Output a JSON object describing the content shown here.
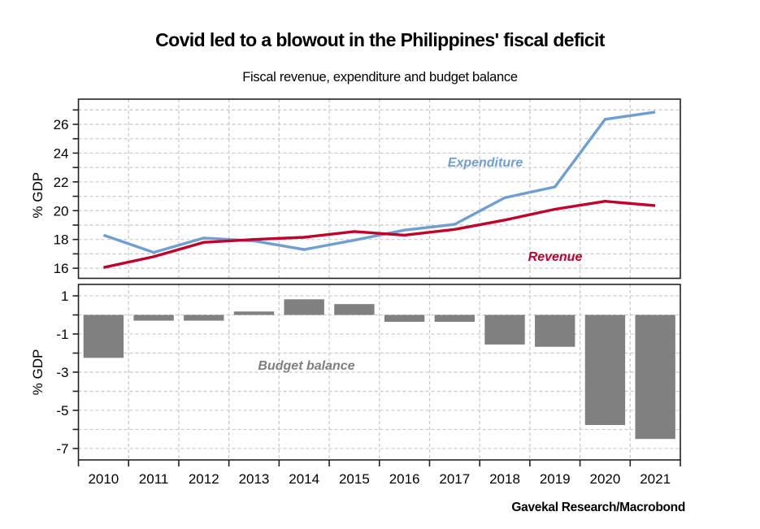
{
  "title": "Covid led to a blowout in the Philippines' fiscal deficit",
  "subtitle": "Fiscal revenue, expenditure and budget balance",
  "source": "Gavekal Research/Macrobond",
  "colors": {
    "expenditure": "#6f9fd0",
    "revenue": "#c0002a",
    "budget_balance": "#808080",
    "budget_label": "#7f7f7f",
    "grid": "#c8c8c8",
    "axis": "#222222"
  },
  "chart_data": [
    {
      "type": "line",
      "panel": "top",
      "categories": [
        "2010",
        "2011",
        "2012",
        "2013",
        "2014",
        "2015",
        "2016",
        "2017",
        "2018",
        "2019",
        "2020",
        "2021"
      ],
      "series": [
        {
          "name": "Expenditure",
          "label": "Expenditure",
          "values": [
            18.3,
            17.1,
            18.1,
            17.9,
            17.3,
            17.95,
            18.65,
            19.05,
            20.9,
            21.65,
            26.35,
            26.85
          ]
        },
        {
          "name": "Revenue",
          "label": "Revenue",
          "values": [
            16.05,
            16.8,
            17.8,
            18.0,
            18.15,
            18.55,
            18.3,
            18.7,
            19.35,
            20.1,
            20.65,
            20.35
          ]
        }
      ],
      "ylabel": "% GDP",
      "ylim": [
        15.3,
        27.75
      ],
      "yticks": [
        16,
        18,
        20,
        22,
        24,
        26
      ],
      "yminor_step": 1,
      "grid": true
    },
    {
      "type": "bar",
      "panel": "bottom",
      "categories": [
        "2010",
        "2011",
        "2012",
        "2013",
        "2014",
        "2015",
        "2016",
        "2017",
        "2018",
        "2019",
        "2020",
        "2021"
      ],
      "series": [
        {
          "name": "Budget balance",
          "label": "Budget balance",
          "values": [
            -2.25,
            -0.3,
            -0.3,
            0.18,
            0.82,
            0.57,
            -0.36,
            -0.36,
            -1.55,
            -1.67,
            -5.77,
            -6.5
          ]
        }
      ],
      "ylabel": "% GDP",
      "ylim": [
        -7.6,
        1.6
      ],
      "yticks": [
        1,
        -1,
        -3,
        -5,
        -7
      ],
      "yminor_step": 1,
      "grid": true,
      "xlabel": ""
    }
  ]
}
